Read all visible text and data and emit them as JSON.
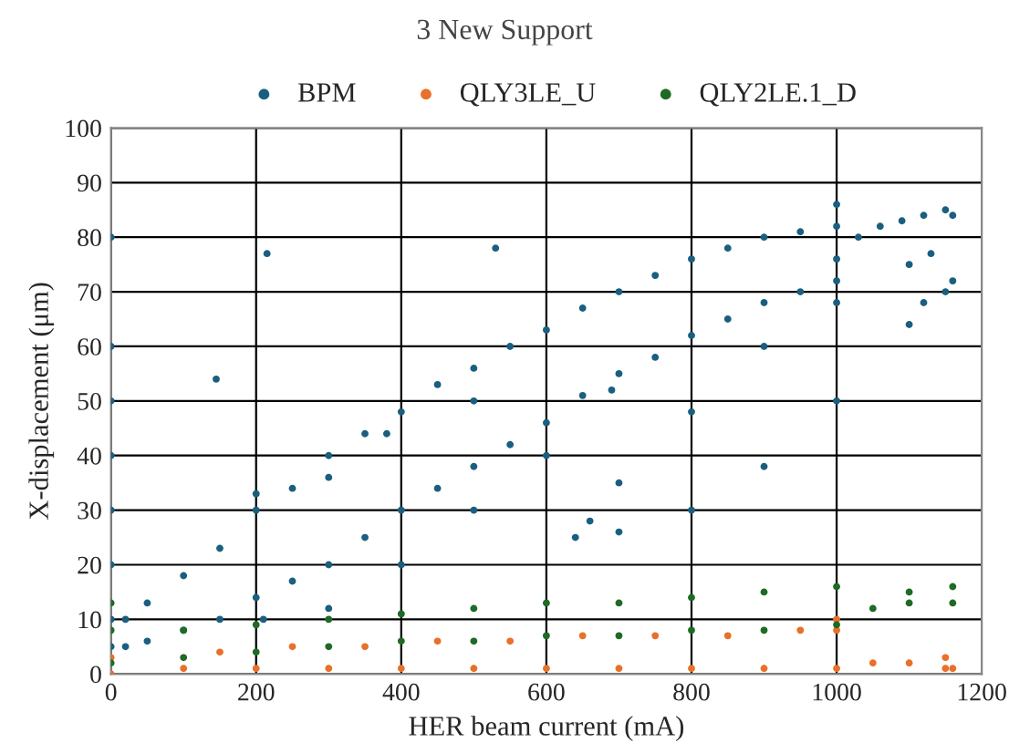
{
  "chart_data": {
    "type": "scatter",
    "title": "3 New Support",
    "xlabel": "HER beam current (mA)",
    "ylabel": "X-displacement (μm)",
    "xlim": [
      0,
      1200
    ],
    "ylim": [
      0,
      100
    ],
    "xticks": [
      0,
      200,
      400,
      600,
      800,
      1000,
      1200
    ],
    "yticks": [
      0,
      10,
      20,
      30,
      40,
      50,
      60,
      70,
      80,
      90,
      100
    ],
    "grid": true,
    "legend": "top",
    "marker": "circle",
    "series": [
      {
        "name": "BPM",
        "color": "#1a5f7f",
        "x": [
          0,
          0,
          0,
          0,
          0,
          0,
          0,
          0,
          145,
          215,
          530,
          20,
          50,
          100,
          150,
          200,
          250,
          300,
          350,
          400,
          450,
          500,
          550,
          600,
          650,
          700,
          750,
          800,
          850,
          900,
          950,
          1000,
          20,
          50,
          100,
          150,
          200,
          250,
          300,
          350,
          400,
          450,
          500,
          550,
          600,
          650,
          700,
          750,
          800,
          850,
          900,
          950,
          1000,
          1000,
          1030,
          1060,
          1090,
          1120,
          1150,
          1160,
          1160,
          1150,
          1120,
          1100,
          1000,
          900,
          800,
          700,
          640,
          660,
          700,
          800,
          900,
          1000,
          1100,
          1130,
          210,
          300,
          400,
          500,
          600,
          690,
          200,
          300,
          380,
          500,
          1000
        ],
        "values": [
          5,
          10,
          20,
          30,
          40,
          50,
          60,
          80,
          54,
          77,
          78,
          5,
          6,
          8,
          10,
          14,
          17,
          20,
          25,
          30,
          34,
          38,
          42,
          46,
          51,
          55,
          58,
          62,
          65,
          68,
          70,
          72,
          10,
          13,
          18,
          23,
          30,
          34,
          40,
          44,
          48,
          53,
          56,
          60,
          63,
          67,
          70,
          73,
          76,
          78,
          80,
          81,
          82,
          86,
          80,
          82,
          83,
          84,
          85,
          84,
          72,
          70,
          68,
          64,
          50,
          38,
          30,
          26,
          25,
          28,
          35,
          48,
          60,
          68,
          75,
          77,
          10,
          12,
          20,
          30,
          40,
          52,
          33,
          36,
          44,
          50,
          76
        ]
      },
      {
        "name": "QLY3LE_U",
        "color": "#e8702a",
        "x": [
          0,
          0,
          100,
          150,
          200,
          250,
          300,
          350,
          400,
          450,
          500,
          550,
          600,
          650,
          700,
          750,
          800,
          850,
          900,
          950,
          1000,
          1000,
          1000,
          1050,
          1100,
          1150,
          1150,
          1160
        ],
        "values": [
          0,
          3,
          1,
          4,
          1,
          5,
          1,
          5,
          1,
          6,
          1,
          6,
          1,
          7,
          1,
          7,
          1,
          7,
          1,
          8,
          1,
          8,
          10,
          2,
          2,
          1,
          3,
          1
        ]
      },
      {
        "name": "QLY2LE.1_D",
        "color": "#1e6b23",
        "x": [
          0,
          0,
          0,
          100,
          100,
          200,
          200,
          300,
          300,
          400,
          400,
          500,
          500,
          600,
          600,
          700,
          700,
          800,
          800,
          900,
          900,
          1000,
          1000,
          1050,
          1100,
          1100,
          1160,
          1160
        ],
        "values": [
          2,
          8,
          13,
          3,
          8,
          4,
          9,
          5,
          10,
          6,
          11,
          6,
          12,
          7,
          13,
          7,
          13,
          8,
          14,
          8,
          15,
          9,
          16,
          12,
          13,
          15,
          13,
          16
        ]
      }
    ]
  }
}
